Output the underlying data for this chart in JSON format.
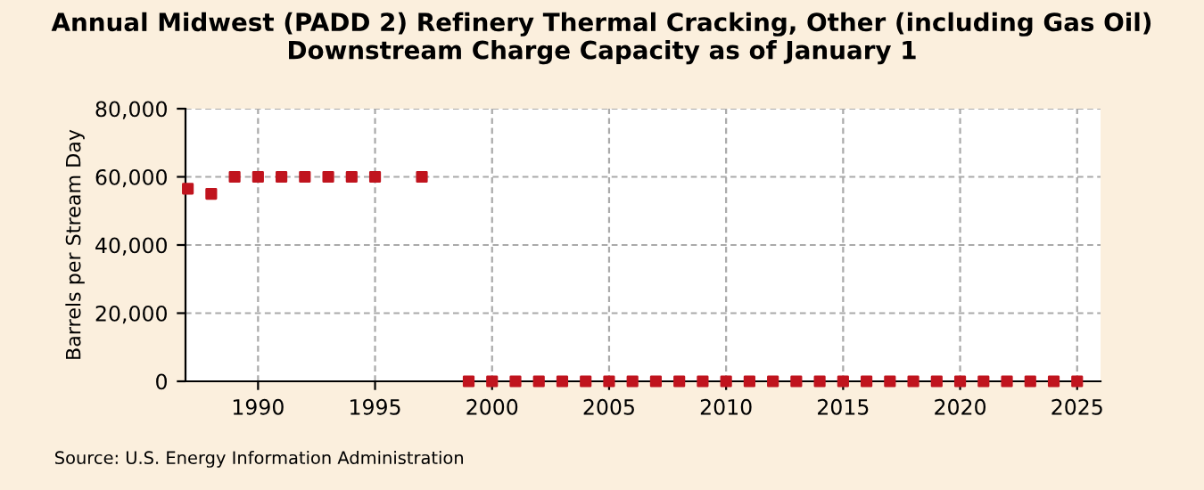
{
  "chart_data": {
    "type": "scatter",
    "title": "Annual Midwest (PADD 2) Refinery Thermal Cracking, Other (including Gas Oil) Downstream Charge Capacity as of January 1",
    "ylabel": "Barrels per Stream Day",
    "x": [
      1987,
      1988,
      1989,
      1990,
      1991,
      1992,
      1993,
      1994,
      1995,
      1996,
      1997,
      1998,
      1999,
      2000,
      2001,
      2002,
      2003,
      2004,
      2005,
      2006,
      2007,
      2008,
      2009,
      2010,
      2011,
      2012,
      2013,
      2014,
      2015,
      2016,
      2017,
      2018,
      2019,
      2020,
      2021,
      2022,
      2023,
      2024,
      2025
    ],
    "series": [
      {
        "color": "#c0141e",
        "values": [
          56500,
          55000,
          60000,
          60000,
          60000,
          60000,
          60000,
          60000,
          60000,
          null,
          60000,
          null,
          0,
          0,
          0,
          0,
          0,
          0,
          0,
          0,
          0,
          0,
          0,
          0,
          0,
          0,
          0,
          0,
          0,
          0,
          0,
          0,
          0,
          0,
          0,
          0,
          0,
          0,
          0
        ]
      }
    ],
    "xlim": [
      1986.9,
      2026
    ],
    "xticks": [
      1990,
      1995,
      2000,
      2005,
      2010,
      2015,
      2020,
      2025
    ],
    "ylim": [
      0,
      80000
    ],
    "yticks": [
      {
        "value": 0,
        "label": "0"
      },
      {
        "value": 20000,
        "label": "20,000"
      },
      {
        "value": 40000,
        "label": "40,000"
      },
      {
        "value": 60000,
        "label": "60,000"
      },
      {
        "value": 80000,
        "label": "80,000"
      }
    ],
    "grid": true,
    "marker": "square",
    "annotations": [
      "Source: U.S. Energy Information Administration"
    ]
  }
}
